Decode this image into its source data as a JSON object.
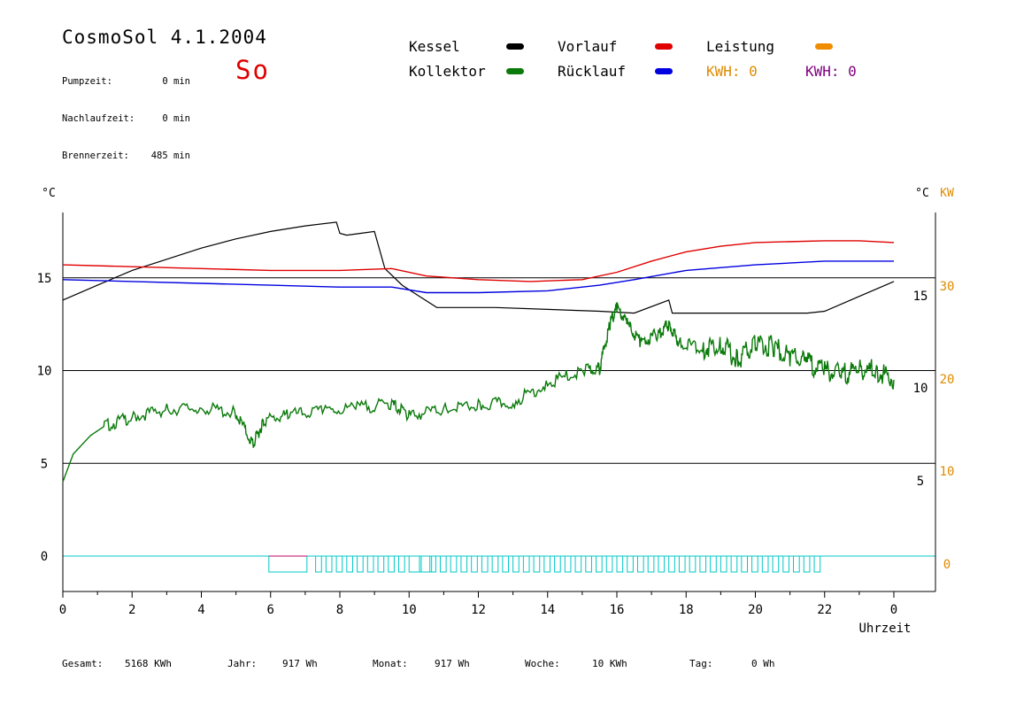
{
  "header": {
    "title": "CosmoSol 4.1.2004",
    "day": "So",
    "stats": [
      {
        "label": "Pumpzeit:",
        "value": "0 min"
      },
      {
        "label": "Nachlaufzeit:",
        "value": "0 min"
      },
      {
        "label": "Brennerzeit:",
        "value": "485 min"
      }
    ]
  },
  "legend": {
    "kessel": {
      "label": "Kessel",
      "color": "#000000"
    },
    "kollektor": {
      "label": "Kollektor",
      "color": "#0a7a0a"
    },
    "vorlauf": {
      "label": "Vorlauf",
      "color": "#e00000"
    },
    "ruecklauf": {
      "label": "Rücklauf",
      "color": "#0000e0"
    },
    "leistung": {
      "label": "Leistung",
      "color": "#f08c00"
    },
    "kwh1": {
      "label": "KWH: 0",
      "color": "#e08a00"
    },
    "kwh2": {
      "label": "KWH: 0",
      "color": "#800080"
    }
  },
  "footer": {
    "gesamt_label": "Gesamt:",
    "gesamt_value": "5168 KWh",
    "jahr_label": "Jahr:",
    "jahr_value": "917 Wh",
    "monat_label": "Monat:",
    "monat_value": "917 Wh",
    "woche_label": "Woche:",
    "woche_value": "10 KWh",
    "tag_label": "Tag:",
    "tag_value": "0 Wh"
  },
  "chart_data": {
    "type": "line",
    "xlabel": "Uhrzeit",
    "x_ticks": [
      "0",
      "2",
      "4",
      "6",
      "8",
      "10",
      "12",
      "14",
      "16",
      "18",
      "20",
      "22",
      "0"
    ],
    "xlim": [
      0,
      24
    ],
    "left_axis": {
      "unit": "°C",
      "ticks": [
        0,
        5,
        10,
        15
      ],
      "ylim": [
        -1.5,
        19.5
      ]
    },
    "right_axis_temp": {
      "unit": "°C",
      "ticks": [
        5,
        10,
        15
      ]
    },
    "right_axis_power": {
      "unit": "KW",
      "ticks": [
        0,
        10,
        20,
        30
      ],
      "color": "#e08a00"
    },
    "gridlines": [
      5,
      10,
      15
    ],
    "series": [
      {
        "name": "Kessel",
        "color": "#000000",
        "points": [
          [
            0,
            13.8
          ],
          [
            1,
            14.6
          ],
          [
            2,
            15.4
          ],
          [
            3,
            16.0
          ],
          [
            4,
            16.6
          ],
          [
            5,
            17.1
          ],
          [
            6,
            17.5
          ],
          [
            7,
            17.8
          ],
          [
            7.9,
            18.0
          ],
          [
            8.0,
            17.4
          ],
          [
            8.2,
            17.3
          ],
          [
            8.6,
            17.4
          ],
          [
            9.0,
            17.5
          ],
          [
            9.3,
            15.5
          ],
          [
            9.8,
            14.6
          ],
          [
            10.3,
            14.0
          ],
          [
            10.8,
            13.4
          ],
          [
            12.5,
            13.4
          ],
          [
            14,
            13.3
          ],
          [
            15.5,
            13.2
          ],
          [
            16.5,
            13.1
          ],
          [
            17.5,
            13.8
          ],
          [
            17.6,
            13.1
          ],
          [
            20,
            13.1
          ],
          [
            21.5,
            13.1
          ],
          [
            22,
            13.2
          ],
          [
            23,
            14.0
          ],
          [
            24,
            14.8
          ]
        ]
      },
      {
        "name": "Vorlauf",
        "color": "#e00000",
        "points": [
          [
            0,
            15.7
          ],
          [
            2,
            15.6
          ],
          [
            4,
            15.5
          ],
          [
            6,
            15.4
          ],
          [
            8,
            15.4
          ],
          [
            9.5,
            15.5
          ],
          [
            10.5,
            15.1
          ],
          [
            12,
            14.9
          ],
          [
            13.5,
            14.8
          ],
          [
            15,
            14.9
          ],
          [
            16,
            15.3
          ],
          [
            17,
            15.9
          ],
          [
            18,
            16.4
          ],
          [
            19,
            16.7
          ],
          [
            20,
            16.9
          ],
          [
            22,
            17.0
          ],
          [
            23,
            17.0
          ],
          [
            24,
            16.9
          ]
        ]
      },
      {
        "name": "Rücklauf",
        "color": "#0000e0",
        "points": [
          [
            0,
            14.9
          ],
          [
            2,
            14.8
          ],
          [
            4,
            14.7
          ],
          [
            6,
            14.6
          ],
          [
            8,
            14.5
          ],
          [
            9.5,
            14.5
          ],
          [
            10.5,
            14.2
          ],
          [
            12,
            14.2
          ],
          [
            14,
            14.3
          ],
          [
            15.5,
            14.6
          ],
          [
            16.5,
            14.9
          ],
          [
            18,
            15.4
          ],
          [
            20,
            15.7
          ],
          [
            22,
            15.9
          ],
          [
            24,
            15.9
          ]
        ]
      },
      {
        "name": "Kollektor",
        "color": "#0a7a0a",
        "points": [
          [
            0,
            4.0
          ],
          [
            0.3,
            5.5
          ],
          [
            0.8,
            6.5
          ],
          [
            1.2,
            7.0
          ],
          [
            2,
            7.5
          ],
          [
            3,
            7.9
          ],
          [
            4,
            8.0
          ],
          [
            5,
            7.7
          ],
          [
            5.5,
            6.0
          ],
          [
            5.8,
            7.3
          ],
          [
            6.5,
            7.6
          ],
          [
            7.5,
            7.8
          ],
          [
            8.5,
            8.0
          ],
          [
            9.5,
            8.2
          ],
          [
            10,
            7.6
          ],
          [
            11,
            7.9
          ],
          [
            12,
            8.1
          ],
          [
            13,
            8.3
          ],
          [
            14,
            9.3
          ],
          [
            15,
            10.0
          ],
          [
            15.5,
            10.1
          ],
          [
            15.8,
            12.5
          ],
          [
            16,
            13.4
          ],
          [
            16.3,
            12.5
          ],
          [
            16.7,
            11.5
          ],
          [
            17.2,
            12.0
          ],
          [
            17.5,
            12.5
          ],
          [
            17.8,
            11.5
          ],
          [
            18.5,
            11.2
          ],
          [
            19,
            11.5
          ],
          [
            19.5,
            10.5
          ],
          [
            20,
            11.5
          ],
          [
            20.5,
            11.3
          ],
          [
            21,
            10.8
          ],
          [
            21.5,
            10.4
          ],
          [
            22,
            10.0
          ],
          [
            22.5,
            9.8
          ],
          [
            23,
            10.1
          ],
          [
            23.5,
            10.0
          ],
          [
            24,
            9.5
          ]
        ]
      }
    ]
  }
}
